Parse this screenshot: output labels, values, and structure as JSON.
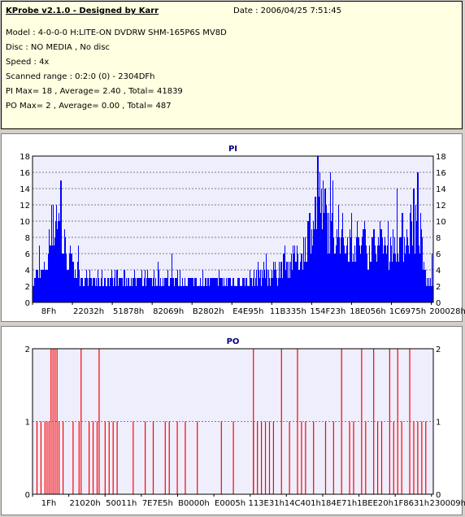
{
  "info": {
    "title": "KProbe v2.1.0 - Designed by Karr",
    "date": "Date : 2006/04/25 7:51:45",
    "model": "Model : 4-0-0-0 H:LITE-ON DVDRW SHM-165P6S MV8D",
    "disc": "Disc : NO MEDIA , No disc",
    "speed": "Speed : 4x",
    "range": "Scanned range : 0:2:0 (0) - 2304DFh",
    "pi_stats": "PI Max= 18 , Average= 2.40 , Total= 41839",
    "po_stats": "PO Max= 2 , Average= 0.00 , Total= 487"
  },
  "colors": {
    "info_bg": "#ffffe1",
    "plot_bg": "#eeeefc",
    "pi_color": "#0000ff",
    "po_color": "#ff0000",
    "grid": "#808080"
  },
  "chart_data": [
    {
      "type": "bar",
      "title": "PI",
      "ylim": [
        0,
        18
      ],
      "yticks": [
        0,
        2,
        4,
        6,
        8,
        10,
        12,
        14,
        16,
        18
      ],
      "xtick_labels": [
        "8Fh",
        "22032h",
        "51878h",
        "82069h",
        "B2802h",
        "E4E95h",
        "11B335h",
        "154F23h",
        "18E056h",
        "1C6975h",
        "200028h"
      ],
      "grid": true,
      "profile": [
        [
          0,
          3
        ],
        [
          0.02,
          4
        ],
        [
          0.035,
          5
        ],
        [
          0.045,
          8
        ],
        [
          0.06,
          13
        ],
        [
          0.075,
          8
        ],
        [
          0.09,
          6
        ],
        [
          0.11,
          4
        ],
        [
          0.14,
          3
        ],
        [
          0.3,
          3
        ],
        [
          0.5,
          3
        ],
        [
          0.55,
          3
        ],
        [
          0.56,
          4
        ],
        [
          0.6,
          4
        ],
        [
          0.63,
          5
        ],
        [
          0.66,
          6
        ],
        [
          0.68,
          8
        ],
        [
          0.7,
          12
        ],
        [
          0.715,
          14
        ],
        [
          0.73,
          11
        ],
        [
          0.76,
          9
        ],
        [
          0.8,
          8
        ],
        [
          0.85,
          8
        ],
        [
          0.9,
          8
        ],
        [
          0.93,
          9
        ],
        [
          0.95,
          11
        ],
        [
          0.965,
          10
        ],
        [
          0.975,
          5
        ],
        [
          0.985,
          3
        ],
        [
          1.0,
          3
        ]
      ],
      "peaks": [
        [
          0.07,
          15
        ],
        [
          0.71,
          18
        ],
        [
          0.96,
          16
        ],
        [
          0.73,
          14
        ],
        [
          0.95,
          14
        ]
      ]
    },
    {
      "type": "bar",
      "title": "PO",
      "ylim": [
        0,
        2
      ],
      "yticks": [
        0,
        1,
        2
      ],
      "xtick_labels": [
        "1Fh",
        "21020h",
        "50011h",
        "7E7E5h",
        "B0000h",
        "E0005h",
        "113E31h",
        "14C401h",
        "184E71h",
        "1BEE20h",
        "1F8631h",
        "230009h"
      ],
      "grid": true,
      "spikes_value_2": [
        0.045,
        0.05,
        0.055,
        0.06,
        0.12,
        0.165,
        0.55,
        0.62,
        0.66,
        0.77,
        0.82,
        0.85,
        0.89,
        0.91,
        0.94
      ],
      "spikes_value_1": [
        0.01,
        0.02,
        0.03,
        0.035,
        0.04,
        0.065,
        0.075,
        0.1,
        0.115,
        0.14,
        0.15,
        0.16,
        0.18,
        0.19,
        0.2,
        0.21,
        0.25,
        0.28,
        0.3,
        0.33,
        0.34,
        0.36,
        0.38,
        0.41,
        0.47,
        0.5,
        0.55,
        0.56,
        0.57,
        0.58,
        0.59,
        0.6,
        0.64,
        0.67,
        0.68,
        0.7,
        0.73,
        0.75,
        0.79,
        0.8,
        0.83,
        0.86,
        0.87,
        0.9,
        0.92,
        0.95,
        0.96,
        0.97,
        0.98
      ]
    }
  ]
}
